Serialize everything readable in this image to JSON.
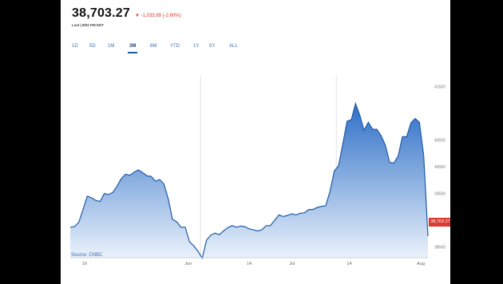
{
  "header": {
    "price": "38,703.27",
    "change_arrow": "▼",
    "change": "-1,033.99 (-2.60%)",
    "last_updated": "Last | 8/02 PM EDT"
  },
  "tabs": [
    {
      "label": "1D",
      "active": false
    },
    {
      "label": "5D",
      "active": false
    },
    {
      "label": "1M",
      "active": false
    },
    {
      "label": "3M",
      "active": true
    },
    {
      "label": "6M",
      "active": false
    },
    {
      "label": "YTD",
      "active": false
    },
    {
      "label": "1Y",
      "active": false
    },
    {
      "label": "5Y",
      "active": false
    },
    {
      "label": "ALL",
      "active": false
    }
  ],
  "current_price_label": "38,703.27",
  "source": "Source: CNBC",
  "colors": {
    "line": "#1f5aa8",
    "fill_top": "#2e6fc7",
    "fill_bottom": "#eaf2fb",
    "tab": "#3c6fb6",
    "down": "#d9342b"
  },
  "chart_data": {
    "type": "area",
    "x_ticks": [
      "16",
      "Jun",
      "14",
      "Jul",
      "14",
      "Aug"
    ],
    "y_ticks": [
      41500,
      40500,
      40000,
      39500,
      39000,
      38500
    ],
    "y_tick_labels": [
      "41500",
      "40500",
      "40000",
      "39500",
      "39000",
      "38500"
    ],
    "ylim": [
      38300,
      41700
    ],
    "x": [
      0,
      1,
      2,
      3,
      4,
      5,
      6,
      7,
      8,
      9,
      10,
      11,
      12,
      13,
      14,
      15,
      16,
      17,
      18,
      19,
      20,
      21,
      22,
      23,
      24,
      25,
      26,
      27,
      28,
      29,
      30,
      31,
      32,
      33,
      34,
      35,
      36,
      37,
      38,
      39,
      40,
      41,
      42,
      43,
      44,
      45,
      46,
      47,
      48,
      49,
      50,
      51,
      52,
      53,
      54,
      55,
      56,
      57,
      58,
      59,
      60,
      61,
      62,
      63,
      64,
      65,
      66,
      67,
      68,
      69,
      70,
      71,
      72,
      73,
      74,
      75,
      76,
      77,
      78,
      79,
      80,
      81,
      82,
      83,
      84
    ],
    "values": [
      38870,
      38880,
      38960,
      39200,
      39450,
      39420,
      39370,
      39350,
      39500,
      39480,
      39520,
      39640,
      39780,
      39860,
      39840,
      39900,
      39940,
      39890,
      39830,
      39820,
      39730,
      39760,
      39680,
      39400,
      39020,
      38970,
      38870,
      38870,
      38600,
      38520,
      38420,
      38290,
      38630,
      38720,
      38760,
      38730,
      38800,
      38860,
      38900,
      38870,
      38890,
      38880,
      38840,
      38820,
      38800,
      38820,
      38900,
      38900,
      39000,
      39100,
      39070,
      39090,
      39120,
      39100,
      39130,
      39140,
      39200,
      39200,
      39240,
      39260,
      39270,
      39540,
      39920,
      40020,
      40420,
      40850,
      40880,
      41180,
      40960,
      40680,
      40830,
      40700,
      40700,
      40580,
      40400,
      40080,
      40070,
      40200,
      40560,
      40560,
      40820,
      40900,
      40830,
      40200,
      38703
    ]
  }
}
